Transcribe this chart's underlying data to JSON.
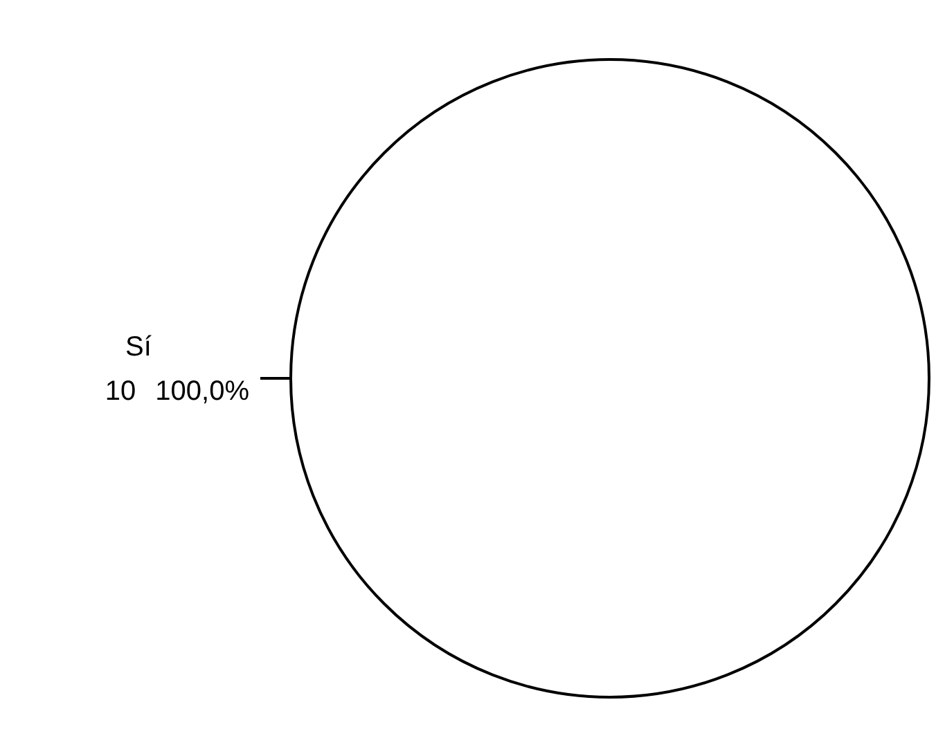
{
  "chart_data": {
    "type": "pie",
    "categories": [
      "Sí"
    ],
    "values": [
      10
    ],
    "colors": [
      "#ffffff"
    ],
    "data_labels": true,
    "annotations": [
      "100,0%"
    ],
    "legend": false
  }
}
